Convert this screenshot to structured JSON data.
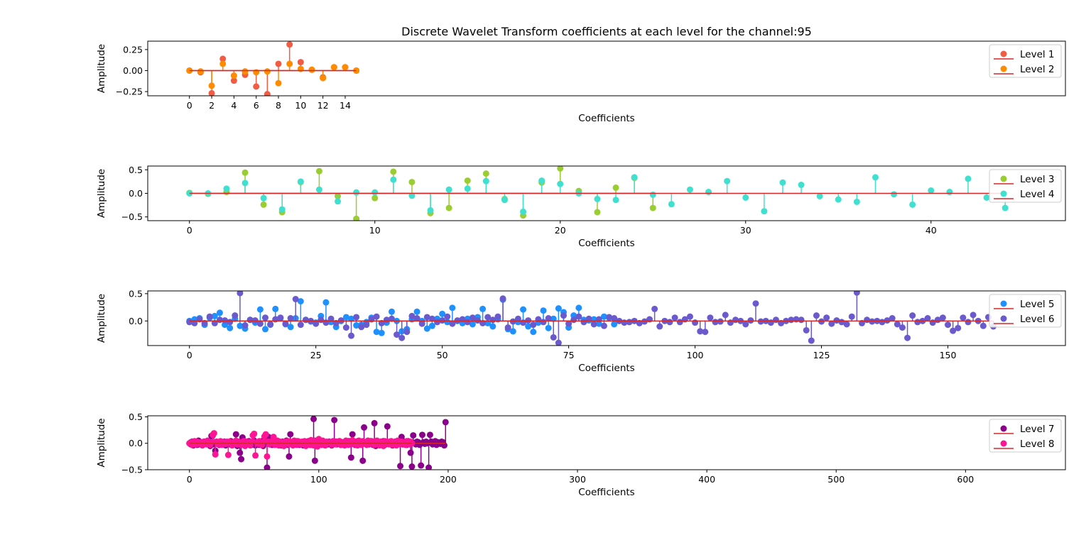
{
  "chart_data": [
    {
      "type": "stem",
      "title": "Discrete Wavelet Transform coefficients at each level for the channel:95",
      "xlabel": "Coefficients",
      "ylabel": "Amplitude",
      "xlim": [
        -3.75,
        78.75
      ],
      "ylim": [
        -0.3,
        0.35
      ],
      "xticks": [
        0,
        2,
        4,
        6,
        8,
        10,
        12,
        14
      ],
      "yticks": [
        -0.25,
        0.0,
        0.25
      ],
      "yticklabels": [
        "−0.25",
        "0.00",
        "0.25"
      ],
      "legend_position": "top-right",
      "series": [
        {
          "name": "Level 1",
          "color": "#f25c45",
          "values": [
            0.0,
            -0.02,
            -0.27,
            0.14,
            -0.12,
            -0.05,
            -0.19,
            -0.28,
            0.08,
            0.31,
            0.1,
            0.01,
            -0.08,
            0.04,
            0.04,
            0.0
          ]
        },
        {
          "name": "Level 2",
          "color": "#ff8c00",
          "values": [
            0.0,
            -0.01,
            -0.18,
            0.08,
            -0.06,
            -0.01,
            -0.02,
            -0.01,
            -0.15,
            0.08,
            0.02,
            0.01,
            -0.09,
            0.04,
            0.04,
            0.0
          ]
        }
      ]
    },
    {
      "type": "stem",
      "xlabel": "Coefficients",
      "ylabel": "Amplitude",
      "xlim": [
        -2.25,
        47.25
      ],
      "ylim": [
        -0.58,
        0.58
      ],
      "xticks": [
        0,
        10,
        20,
        30,
        40
      ],
      "yticks": [
        -0.5,
        0.0,
        0.5
      ],
      "yticklabels": [
        "−0.5",
        "0.0",
        "0.5"
      ],
      "legend_position": "top-right",
      "series": [
        {
          "name": "Level 3",
          "color": "#9acd32",
          "values": [
            0.01,
            -0.01,
            0.03,
            0.44,
            -0.24,
            -0.4,
            0.24,
            0.47,
            -0.06,
            -0.54,
            -0.1,
            0.46,
            0.24,
            -0.42,
            -0.31,
            0.27,
            0.42,
            -0.12,
            -0.47,
            0.23,
            0.53,
            0.05,
            -0.4,
            0.12,
            0.33,
            -0.31
          ]
        },
        {
          "name": "Level 4",
          "color": "#40e0d0",
          "values": [
            0.0,
            0.0,
            0.1,
            0.22,
            -0.1,
            -0.34,
            0.25,
            0.08,
            -0.17,
            0.02,
            0.02,
            0.29,
            -0.05,
            -0.36,
            0.08,
            0.1,
            0.26,
            -0.14,
            -0.39,
            0.27,
            0.2,
            0.0,
            -0.12,
            -0.14,
            0.34,
            -0.03,
            -0.23,
            0.08,
            0.03,
            0.26,
            -0.09,
            -0.38,
            0.23,
            0.18,
            -0.06,
            -0.13,
            -0.18,
            0.34,
            -0.02,
            -0.24,
            0.06,
            0.03,
            0.31,
            -0.09,
            -0.31
          ]
        }
      ]
    },
    {
      "type": "stem",
      "xlabel": "Coefficients",
      "ylabel": "Amplitude",
      "xlim": [
        -8.25,
        173.25
      ],
      "ylim": [
        -0.45,
        0.55
      ],
      "xticks": [
        0,
        25,
        50,
        75,
        100,
        125,
        150
      ],
      "yticks": [
        0.0,
        0.5
      ],
      "yticklabels": [
        "0.0",
        "0.5"
      ],
      "legend_position": "top-right",
      "series": [
        {
          "name": "Level 5",
          "color": "#1e90ff",
          "values": [
            0.0,
            0.03,
            0.05,
            -0.07,
            0.06,
            0.09,
            0.15,
            -0.07,
            -0.13,
            0.04,
            -0.09,
            -0.14,
            0.02,
            -0.03,
            0.21,
            -0.15,
            -0.07,
            0.22,
            0.05,
            -0.06,
            -0.11,
            0.05,
            0.36,
            0.02,
            -0.01,
            -0.03,
            0.09,
            0.34,
            -0.02,
            -0.11,
            0.0,
            0.07,
            0.04,
            -0.08,
            -0.07,
            -0.02,
            0.06,
            -0.2,
            -0.22,
            -0.03,
            0.17,
            0.0,
            -0.19,
            -0.15,
            0.03,
            0.17,
            0.0,
            -0.14,
            -0.09,
            0.04,
            0.13,
            -0.02,
            0.24,
            0.0,
            -0.04,
            0.04,
            -0.06,
            0.07,
            0.22,
            -0.04,
            -0.1,
            0.03,
            0.39,
            -0.15,
            -0.19,
            -0.02,
            0.21,
            -0.1,
            -0.2,
            -0.03,
            0.19,
            -0.13,
            0.04,
            0.23,
            0.16,
            -0.12,
            0.1,
            0.24,
            0.02,
            0.01,
            0.03,
            -0.05,
            0.08,
            0.06,
            -0.06
          ]
        },
        {
          "name": "Level 6",
          "color": "#6a5acd",
          "values": [
            -0.02,
            -0.04,
            0.03,
            -0.04,
            0.08,
            -0.04,
            0.02,
            0.01,
            -0.02,
            0.1,
            0.51,
            -0.08,
            0.02,
            0.01,
            -0.05,
            0.06,
            -0.06,
            0.03,
            0.06,
            -0.05,
            0.05,
            0.4,
            -0.07,
            0.02,
            0.0,
            -0.05,
            0.02,
            -0.03,
            0.04,
            -0.04,
            0.01,
            -0.12,
            -0.27,
            0.07,
            -0.11,
            -0.07,
            0.03,
            0.08,
            -0.04,
            0.02,
            0.04,
            -0.25,
            -0.31,
            -0.2,
            0.09,
            0.05,
            -0.05,
            0.07,
            0.04,
            -0.02,
            0.01,
            0.08,
            -0.05,
            0.01,
            0.03,
            -0.02,
            0.06,
            0.01,
            -0.04,
            0.07,
            0.02,
            0.08,
            0.41,
            -0.12,
            -0.01,
            0.04,
            -0.03,
            0.01,
            -0.07,
            0.03,
            -0.02,
            0.05,
            -0.3,
            -0.4,
            0.1,
            -0.05,
            0.02,
            0.08,
            -0.02,
            0.04,
            -0.06,
            0.03,
            -0.09,
            0.07,
            0.05,
            0.0,
            -0.03,
            -0.02,
            0.0,
            -0.04,
            -0.01,
            0.03,
            0.22,
            -0.1,
            0.0,
            -0.02,
            0.06,
            -0.02,
            0.03,
            0.08,
            -0.03,
            -0.19,
            -0.2,
            0.06,
            -0.02,
            -0.01,
            0.11,
            -0.03,
            0.02,
            0.0,
            -0.06,
            0.01,
            0.32,
            -0.01,
            0.0,
            -0.03,
            0.02,
            -0.04,
            0.0,
            0.02,
            0.03,
            0.02,
            -0.17,
            -0.36,
            0.1,
            -0.01,
            0.06,
            -0.05,
            0.01,
            -0.02,
            -0.06,
            0.08,
            0.52,
            -0.04,
            0.02,
            -0.01,
            0.0,
            -0.02,
            0.01,
            0.05,
            -0.06,
            -0.12,
            -0.31,
            0.1,
            -0.02,
            0.0,
            0.05,
            -0.03,
            0.02,
            0.06,
            -0.07,
            -0.18,
            -0.13,
            0.06,
            -0.02,
            0.11,
            0.0,
            -0.09,
            0.07,
            -0.1
          ]
        }
      ]
    },
    {
      "type": "stem",
      "xlabel": "Coefficients",
      "ylabel": "Amplitude",
      "xlim": [
        -32.25,
        677.25
      ],
      "ylim": [
        -0.5,
        0.52
      ],
      "xticks": [
        0,
        100,
        200,
        300,
        400,
        500,
        600
      ],
      "yticks": [
        -0.5,
        0.0,
        0.5
      ],
      "yticklabels": [
        "−0.5",
        "0.0",
        "0.5"
      ],
      "legend_position": "top-right",
      "series": [
        {
          "name": "Level 7",
          "color": "#8b008b",
          "values": [
            0.0,
            -0.02,
            0.03,
            -0.04,
            0.02,
            0.0,
            -0.03,
            0.05,
            -0.02,
            0.01,
            0.0,
            -0.02,
            0.03,
            -0.01,
            0.02,
            0.04,
            -0.05,
            0.14,
            0.15,
            -0.02,
            -0.14,
            0.03,
            0.01,
            -0.03,
            0.02,
            -0.01,
            0.0,
            0.03,
            -0.04,
            0.02,
            0.01,
            -0.02,
            0.04,
            -0.03,
            0.02,
            0.0,
            0.17,
            -0.05,
            0.03,
            -0.18,
            -0.3,
            0.11,
            -0.02,
            0.01,
            0.03,
            -0.02,
            0.04,
            0.0,
            -0.03,
            0.02,
            0.05,
            -0.04,
            0.01,
            0.02,
            -0.03,
            -0.01,
            0.04,
            -0.05,
            0.02,
            0.03,
            -0.46,
            0.12,
            -0.02,
            0.01,
            -0.03,
            0.04,
            0.0,
            -0.02,
            0.03,
            -0.01,
            0.02,
            -0.04,
            0.03,
            0.01,
            -0.02,
            0.05,
            -0.03,
            -0.25,
            0.17,
            0.02,
            -0.01,
            0.03,
            -0.02,
            0.04,
            0.0,
            -0.03,
            0.02,
            0.01,
            -0.04,
            0.03,
            0.02,
            -0.01,
            0.04,
            0.02,
            -0.03,
            0.03,
            0.46,
            -0.33,
            0.02,
            -0.01,
            0.03,
            -0.02,
            0.01,
            0.04,
            -0.03,
            0.02,
            0.0,
            -0.02,
            0.03,
            0.01,
            -0.04,
            0.02,
            0.44,
            0.03,
            -0.02,
            0.01,
            0.04,
            -0.03,
            0.02,
            0.0,
            -0.01,
            0.03,
            -0.02,
            0.04,
            0.01,
            -0.27,
            0.17,
            0.02,
            -0.03,
            0.01,
            0.04,
            -0.02,
            0.03,
            0.0,
            -0.33,
            0.3,
            0.02,
            -0.01,
            0.03,
            -0.02,
            0.04,
            0.01,
            -0.03,
            0.38,
            -0.05,
            0.02,
            0.01,
            -0.02,
            0.03,
            0.0,
            0.04,
            -0.03,
            0.02,
            0.32,
            -0.01,
            0.03,
            0.02,
            -0.04,
            0.01,
            0.03,
            -0.02,
            0.0,
            0.04,
            -0.43,
            0.12,
            -0.02,
            0.03,
            0.01,
            -0.03,
            0.04,
            0.02,
            -0.18,
            -0.44,
            0.15,
            0.01,
            -0.02,
            0.03,
            0.02,
            -0.03,
            -0.42,
            0.16,
            0.02,
            -0.01,
            0.03,
            0.0,
            -0.46,
            0.16,
            0.03,
            -0.02,
            0.01,
            0.04,
            -0.03,
            0.02,
            0.0,
            -0.01,
            0.03,
            0.02,
            -0.04,
            0.4
          ]
        },
        {
          "name": "Level 8",
          "color": "#ff1493",
          "values": [
            0.0,
            0.02,
            -0.03,
            0.01,
            0.04,
            -0.02,
            0.03,
            -0.01,
            0.0,
            0.02,
            -0.04,
            0.03,
            0.01,
            -0.02,
            0.05,
            0.0,
            -0.03,
            0.02,
            0.16,
            0.19,
            -0.21,
            0.03,
            -0.02,
            0.01,
            0.04,
            -0.03,
            0.0,
            0.02,
            -0.01,
            0.03,
            -0.22,
            0.03,
            0.01,
            -0.04,
            0.02,
            0.0,
            0.05,
            -0.02,
            0.03,
            0.01,
            -0.03,
            0.02,
            0.04,
            -0.05,
            0.03,
            0.0,
            0.02,
            -0.04,
            0.03,
            0.15,
            0.18,
            -0.23,
            0.02,
            -0.01,
            0.04,
            0.0,
            -0.03,
            0.02,
            0.13,
            0.17,
            -0.25,
            0.03,
            -0.02,
            0.01,
            0.04,
            0.12,
            -0.03,
            0.02,
            0.05,
            -0.04,
            0.03,
            0.0,
            0.02,
            -0.05,
            0.03,
            0.01,
            0.04,
            -0.02,
            0.03,
            0.0,
            -0.04,
            0.05,
            0.02,
            -0.03,
            0.04,
            0.01,
            -0.02,
            0.03,
            0.0,
            0.04,
            -0.05,
            0.03,
            0.02,
            -0.03,
            0.06,
            0.01,
            -0.04,
            0.05,
            0.02,
            -0.06,
            0.08,
            0.0,
            -0.03,
            0.05,
            0.02,
            -0.04,
            0.03,
            0.01,
            0.02,
            0.0,
            -0.03,
            0.04,
            0.01,
            -0.02,
            0.03,
            0.0,
            0.04,
            -0.03,
            0.02,
            0.01,
            -0.04,
            0.05,
            0.02,
            -0.03,
            0.03,
            0.01,
            0.06,
            -0.02,
            0.03,
            0.0,
            -0.04,
            0.05,
            0.02,
            -0.03,
            0.04,
            0.01,
            0.0,
            -0.03,
            0.05,
            0.02,
            -0.01,
            0.04,
            0.0,
            -0.03,
            0.02,
            0.05,
            0.01,
            -0.04,
            0.03,
            0.02,
            -0.05,
            0.04,
            0.0,
            0.03,
            -0.02,
            0.01,
            0.04,
            -0.03,
            0.02,
            0.0,
            -0.04,
            0.05,
            0.01,
            -0.02,
            0.03,
            0.0,
            0.02,
            -0.03,
            0.04,
            0.01,
            -0.02,
            0.03,
            0.0
          ]
        }
      ]
    }
  ]
}
